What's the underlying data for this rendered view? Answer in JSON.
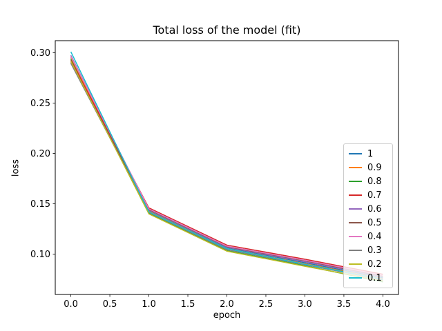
{
  "chart_data": {
    "type": "line",
    "title": "Total loss of the model (fit)",
    "xlabel": "epoch",
    "ylabel": "loss",
    "grid": false,
    "legend_position": "lower right",
    "xlim": [
      -0.2,
      4.2
    ],
    "ylim": [
      0.06,
      0.312
    ],
    "x": [
      0,
      1,
      2,
      3,
      4
    ],
    "xticks": [
      "0.0",
      "0.5",
      "1.0",
      "1.5",
      "2.0",
      "2.5",
      "3.0",
      "3.5",
      "4.0"
    ],
    "xtick_values": [
      0,
      0.5,
      1,
      1.5,
      2,
      2.5,
      3,
      3.5,
      4
    ],
    "yticks": [
      "0.10",
      "0.15",
      "0.20",
      "0.25",
      "0.30"
    ],
    "ytick_values": [
      0.1,
      0.15,
      0.2,
      0.25,
      0.3
    ],
    "axis_color": "#000000",
    "series": [
      {
        "name": "1",
        "color": "#1f77b4",
        "values": [
          0.296,
          0.1435,
          0.1065,
          0.0915,
          0.0765
        ]
      },
      {
        "name": "0.9",
        "color": "#ff7f0e",
        "values": [
          0.295,
          0.1425,
          0.1055,
          0.0905,
          0.0755
        ]
      },
      {
        "name": "0.8",
        "color": "#2ca02c",
        "values": [
          0.2935,
          0.1405,
          0.1035,
          0.0885,
          0.0725
        ]
      },
      {
        "name": "0.7",
        "color": "#d62728",
        "values": [
          0.2925,
          0.146,
          0.109,
          0.095,
          0.08
        ]
      },
      {
        "name": "0.6",
        "color": "#9467bd",
        "values": [
          0.2975,
          0.144,
          0.107,
          0.0925,
          0.0775
        ]
      },
      {
        "name": "0.5",
        "color": "#8c564b",
        "values": [
          0.2905,
          0.1445,
          0.1075,
          0.0935,
          0.078
        ]
      },
      {
        "name": "0.4",
        "color": "#e377c2",
        "values": [
          0.2965,
          0.145,
          0.108,
          0.094,
          0.079
        ]
      },
      {
        "name": "0.3",
        "color": "#7f7f7f",
        "values": [
          0.2895,
          0.1415,
          0.1045,
          0.0895,
          0.0745
        ]
      },
      {
        "name": "0.2",
        "color": "#bcbd22",
        "values": [
          0.2915,
          0.14,
          0.103,
          0.088,
          0.0735
        ]
      },
      {
        "name": "0.1",
        "color": "#17becf",
        "values": [
          0.301,
          0.142,
          0.1055,
          0.09,
          0.075
        ]
      }
    ]
  }
}
